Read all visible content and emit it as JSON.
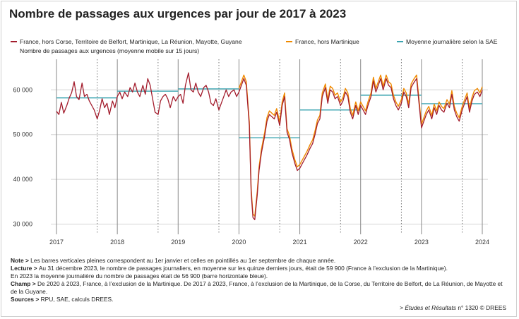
{
  "title": "Nombre de passages aux urgences par jour de 2017 à 2023",
  "chart_data": {
    "type": "line",
    "ylabel": "",
    "ylim": [
      29000,
      66500
    ],
    "y_ticks": [
      "30 000",
      "40 000",
      "50 000",
      "60 000"
    ],
    "y_tick_values": [
      30000,
      40000,
      50000,
      60000
    ],
    "xlim": [
      2017,
      2024
    ],
    "x_ticks": [
      "2017",
      "2018",
      "2019",
      "2020",
      "2021",
      "2022",
      "2023",
      "2024"
    ],
    "x_tick_values": [
      2017,
      2018,
      2019,
      2020,
      2021,
      2022,
      2023,
      2024
    ],
    "grid": true,
    "legend_position": "top",
    "series": [
      {
        "name": "France, hors Corse, Territoire de Belfort, Martinique, La Réunion, Mayotte, Guyane",
        "color": "#a31d2d",
        "points": [
          [
            2017.0,
            55200
          ],
          [
            2017.04,
            54500
          ],
          [
            2017.08,
            57200
          ],
          [
            2017.12,
            54800
          ],
          [
            2017.17,
            56500
          ],
          [
            2017.21,
            58200
          ],
          [
            2017.25,
            59400
          ],
          [
            2017.29,
            61800
          ],
          [
            2017.33,
            58500
          ],
          [
            2017.37,
            57800
          ],
          [
            2017.42,
            61500
          ],
          [
            2017.46,
            58500
          ],
          [
            2017.5,
            59000
          ],
          [
            2017.54,
            57500
          ],
          [
            2017.58,
            56500
          ],
          [
            2017.62,
            55500
          ],
          [
            2017.67,
            53500
          ],
          [
            2017.71,
            55500
          ],
          [
            2017.75,
            58000
          ],
          [
            2017.79,
            56000
          ],
          [
            2017.83,
            57000
          ],
          [
            2017.87,
            54500
          ],
          [
            2017.92,
            57500
          ],
          [
            2017.96,
            56000
          ],
          [
            2018.0,
            58500
          ],
          [
            2018.04,
            59500
          ],
          [
            2018.08,
            58000
          ],
          [
            2018.12,
            59500
          ],
          [
            2018.17,
            58500
          ],
          [
            2018.21,
            60500
          ],
          [
            2018.25,
            59500
          ],
          [
            2018.29,
            61500
          ],
          [
            2018.33,
            59500
          ],
          [
            2018.37,
            58500
          ],
          [
            2018.42,
            61000
          ],
          [
            2018.46,
            59000
          ],
          [
            2018.5,
            62500
          ],
          [
            2018.54,
            61000
          ],
          [
            2018.58,
            58000
          ],
          [
            2018.62,
            55000
          ],
          [
            2018.67,
            54500
          ],
          [
            2018.71,
            57500
          ],
          [
            2018.75,
            58500
          ],
          [
            2018.79,
            59000
          ],
          [
            2018.83,
            58000
          ],
          [
            2018.87,
            56000
          ],
          [
            2018.92,
            58500
          ],
          [
            2018.96,
            57500
          ],
          [
            2019.0,
            58500
          ],
          [
            2019.04,
            59000
          ],
          [
            2019.08,
            57000
          ],
          [
            2019.12,
            61000
          ],
          [
            2019.17,
            63800
          ],
          [
            2019.21,
            60000
          ],
          [
            2019.25,
            59500
          ],
          [
            2019.29,
            61500
          ],
          [
            2019.33,
            59500
          ],
          [
            2019.37,
            58500
          ],
          [
            2019.42,
            60500
          ],
          [
            2019.46,
            61000
          ],
          [
            2019.5,
            59500
          ],
          [
            2019.54,
            57000
          ],
          [
            2019.58,
            56500
          ],
          [
            2019.62,
            58000
          ],
          [
            2019.67,
            55500
          ],
          [
            2019.71,
            57000
          ],
          [
            2019.75,
            58500
          ],
          [
            2019.79,
            60000
          ],
          [
            2019.83,
            58500
          ],
          [
            2019.87,
            59500
          ],
          [
            2019.92,
            60000
          ],
          [
            2019.96,
            58500
          ],
          [
            2020.0,
            59500
          ],
          [
            2020.04,
            61000
          ],
          [
            2020.08,
            62500
          ],
          [
            2020.12,
            61000
          ],
          [
            2020.17,
            52000
          ],
          [
            2020.2,
            37000
          ],
          [
            2020.23,
            31500
          ],
          [
            2020.26,
            31000
          ],
          [
            2020.3,
            36500
          ],
          [
            2020.33,
            42000
          ],
          [
            2020.37,
            46000
          ],
          [
            2020.42,
            49500
          ],
          [
            2020.46,
            53000
          ],
          [
            2020.5,
            54500
          ],
          [
            2020.54,
            54000
          ],
          [
            2020.58,
            53500
          ],
          [
            2020.62,
            55000
          ],
          [
            2020.67,
            52000
          ],
          [
            2020.71,
            56500
          ],
          [
            2020.75,
            58500
          ],
          [
            2020.79,
            50500
          ],
          [
            2020.83,
            49000
          ],
          [
            2020.87,
            46000
          ],
          [
            2020.92,
            43500
          ],
          [
            2020.96,
            42000
          ],
          [
            2021.0,
            42500
          ],
          [
            2021.04,
            43500
          ],
          [
            2021.08,
            44500
          ],
          [
            2021.12,
            45500
          ],
          [
            2021.17,
            47000
          ],
          [
            2021.21,
            48000
          ],
          [
            2021.25,
            50000
          ],
          [
            2021.29,
            52500
          ],
          [
            2021.33,
            53500
          ],
          [
            2021.37,
            58500
          ],
          [
            2021.42,
            60500
          ],
          [
            2021.46,
            57000
          ],
          [
            2021.5,
            60000
          ],
          [
            2021.54,
            59500
          ],
          [
            2021.58,
            58000
          ],
          [
            2021.62,
            58500
          ],
          [
            2021.67,
            56500
          ],
          [
            2021.71,
            57500
          ],
          [
            2021.75,
            59500
          ],
          [
            2021.79,
            58500
          ],
          [
            2021.83,
            55000
          ],
          [
            2021.87,
            53500
          ],
          [
            2021.92,
            56500
          ],
          [
            2021.96,
            54500
          ],
          [
            2022.0,
            56500
          ],
          [
            2022.04,
            55500
          ],
          [
            2022.08,
            54500
          ],
          [
            2022.12,
            56500
          ],
          [
            2022.17,
            58500
          ],
          [
            2022.21,
            62000
          ],
          [
            2022.25,
            59500
          ],
          [
            2022.29,
            61000
          ],
          [
            2022.33,
            62500
          ],
          [
            2022.37,
            60000
          ],
          [
            2022.42,
            62500
          ],
          [
            2022.46,
            61000
          ],
          [
            2022.5,
            60500
          ],
          [
            2022.54,
            58000
          ],
          [
            2022.58,
            56500
          ],
          [
            2022.62,
            55500
          ],
          [
            2022.67,
            57000
          ],
          [
            2022.71,
            59500
          ],
          [
            2022.75,
            58500
          ],
          [
            2022.79,
            56000
          ],
          [
            2022.83,
            60500
          ],
          [
            2022.87,
            61500
          ],
          [
            2022.92,
            62500
          ],
          [
            2022.96,
            57000
          ],
          [
            2023.0,
            51500
          ],
          [
            2023.04,
            53000
          ],
          [
            2023.08,
            54500
          ],
          [
            2023.12,
            55500
          ],
          [
            2023.17,
            53500
          ],
          [
            2023.21,
            56000
          ],
          [
            2023.25,
            54500
          ],
          [
            2023.29,
            56500
          ],
          [
            2023.33,
            55500
          ],
          [
            2023.37,
            55000
          ],
          [
            2023.42,
            57000
          ],
          [
            2023.46,
            56000
          ],
          [
            2023.5,
            59000
          ],
          [
            2023.54,
            55500
          ],
          [
            2023.58,
            54000
          ],
          [
            2023.62,
            53000
          ],
          [
            2023.67,
            55500
          ],
          [
            2023.71,
            57000
          ],
          [
            2023.75,
            58500
          ],
          [
            2023.79,
            55000
          ],
          [
            2023.83,
            57500
          ],
          [
            2023.87,
            59000
          ],
          [
            2023.92,
            59500
          ],
          [
            2023.96,
            58500
          ],
          [
            2024.0,
            59900
          ]
        ]
      },
      {
        "name": "France, hors Martinique",
        "color": "#f08a00",
        "offset_from": 2020,
        "offset_value": 800
      },
      {
        "name": "Moyenne journalière selon la SAE",
        "color": "#3ba4b0",
        "steps": [
          {
            "start": 2017,
            "end": 2018,
            "value": 58200
          },
          {
            "start": 2018,
            "end": 2019,
            "value": 59700
          },
          {
            "start": 2019,
            "end": 2020,
            "value": 60200
          },
          {
            "start": 2020,
            "end": 2021,
            "value": 49300
          },
          {
            "start": 2021,
            "end": 2022,
            "value": 55500
          },
          {
            "start": 2022,
            "end": 2023,
            "value": 58800
          },
          {
            "start": 2023,
            "end": 2024,
            "value": 56900
          }
        ]
      }
    ],
    "series_subtitle": "Nombre de passages aux urgences (moyenne mobile sur 15 jours)"
  },
  "notes": [
    {
      "label": "Note > ",
      "text": "Les barres verticales pleines correspondent au 1er janvier et celles en pointillés au 1er septembre de chaque année."
    },
    {
      "label": "Lecture > ",
      "text": "Au 31 décembre 2023, le nombre de passages journaliers, en moyenne sur les quinze derniers jours, était de 59 900 (France à l’exclusion de la Martinique)."
    },
    {
      "label": "",
      "text": "En 2023 la moyenne journalière du nombre de passages était de 56 900 (barre horizontale bleue)."
    },
    {
      "label": "Champ > ",
      "text": "De 2020 à 2023, France, à l’exclusion de la Martinique. De 2017 à 2023, France, à l’exclusion de la Martinique, de la Corse, du Territoire de Belfort, de La Réunion, de Mayotte et de la Guyane."
    },
    {
      "label": "Sources > ",
      "text": "RPU, SAE, calculs DREES."
    }
  ],
  "source": {
    "prefix": "> ",
    "publication": "Études et Résultats",
    "suffix": " n° 1320 © DREES"
  }
}
